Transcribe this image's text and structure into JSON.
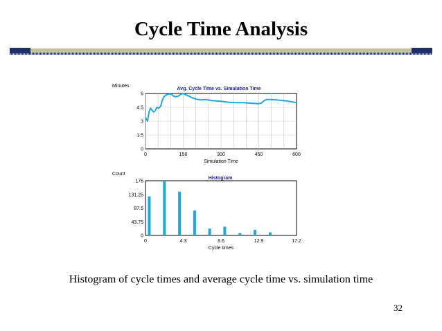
{
  "slide": {
    "title": "Cycle Time Analysis",
    "caption": "Histogram of cycle times and average cycle time vs. simulation time",
    "page_number": "32"
  },
  "colors": {
    "series": "#1ea7e1",
    "chart_title": "#1a1aa6",
    "band_dark": "#1f2f6a",
    "band_light": "#c4c29a"
  },
  "chart_data": [
    {
      "type": "line",
      "title": "Avg. Cycle Time vs. Simulation Time",
      "xlabel": "Simulation Time",
      "ylabel": "Minutes",
      "xlim": [
        0,
        600
      ],
      "ylim": [
        0,
        6
      ],
      "xticks": [
        "0",
        "150",
        "300",
        "450",
        "600"
      ],
      "yticks": [
        "0",
        "1.5",
        "3",
        "4.5",
        "6"
      ],
      "grid": true,
      "series": [
        {
          "x": [
            0,
            8,
            14,
            20,
            26,
            32,
            38,
            45,
            52,
            60,
            66,
            72,
            80,
            88,
            96,
            104,
            112,
            120,
            130,
            140,
            150,
            160,
            170,
            180,
            190,
            200,
            220,
            240,
            260,
            280,
            300,
            330,
            360,
            390,
            420,
            450,
            460,
            470,
            480,
            500,
            520,
            540,
            560,
            580,
            600
          ],
          "y": [
            3.4,
            3.0,
            4.0,
            4.4,
            4.2,
            4.0,
            4.1,
            4.5,
            4.4,
            4.6,
            5.2,
            5.6,
            5.8,
            5.9,
            5.95,
            5.9,
            5.7,
            5.65,
            5.7,
            5.9,
            6.0,
            5.85,
            5.75,
            5.6,
            5.5,
            5.4,
            5.3,
            5.35,
            5.25,
            5.2,
            5.15,
            5.05,
            5.0,
            5.0,
            4.95,
            4.9,
            4.95,
            5.2,
            5.35,
            5.35,
            5.3,
            5.25,
            5.2,
            5.1,
            5.0
          ]
        }
      ]
    },
    {
      "type": "bar",
      "title": "Histogram",
      "xlabel": "Cycle times",
      "ylabel": "Count",
      "xlim": [
        0,
        17.2
      ],
      "ylim": [
        0,
        175
      ],
      "xticks": [
        "0",
        "4.3",
        "8.6",
        "12.9",
        "17.2"
      ],
      "yticks": [
        "0",
        "43.75",
        "87.5",
        "131.25",
        "175"
      ],
      "grid": false,
      "x": [
        0.43,
        2.15,
        3.87,
        5.59,
        7.31,
        9.03,
        10.75,
        12.47,
        14.19,
        15.91
      ],
      "values": [
        125,
        175,
        140,
        80,
        22,
        28,
        8,
        18,
        10,
        2
      ]
    }
  ]
}
